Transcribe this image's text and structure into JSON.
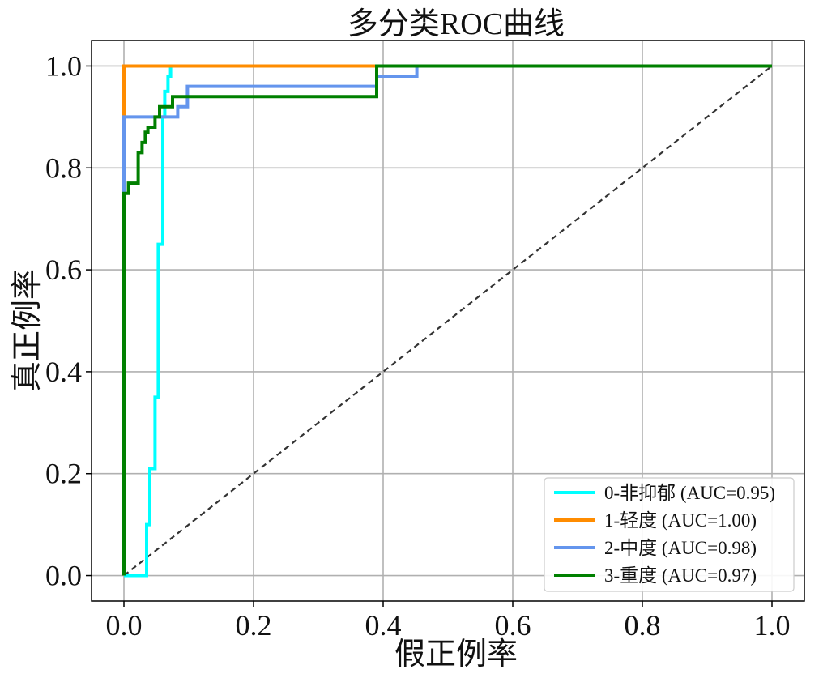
{
  "chart_data": {
    "type": "line",
    "title": "多分类ROC曲线",
    "xlabel": "假正例率",
    "ylabel": "真正例率",
    "xlim": [
      -0.05,
      1.05
    ],
    "ylim": [
      -0.05,
      1.05
    ],
    "xticks": [
      "0.0",
      "0.2",
      "0.4",
      "0.6",
      "0.8",
      "1.0"
    ],
    "yticks": [
      "0.0",
      "0.2",
      "0.4",
      "0.6",
      "0.8",
      "1.0"
    ],
    "xtick_values": [
      0,
      0.2,
      0.4,
      0.6,
      0.8,
      1.0
    ],
    "ytick_values": [
      0,
      0.2,
      0.4,
      0.6,
      0.8,
      1.0
    ],
    "grid": true,
    "legend_position": "bottom-right",
    "series": [
      {
        "name": "0-非抑郁",
        "auc_label": "(AUC=0.95)",
        "color": "#00ffff",
        "points": [
          [
            0,
            0
          ],
          [
            0.035,
            0
          ],
          [
            0.035,
            0.1
          ],
          [
            0.04,
            0.1
          ],
          [
            0.04,
            0.21
          ],
          [
            0.048,
            0.21
          ],
          [
            0.048,
            0.35
          ],
          [
            0.053,
            0.35
          ],
          [
            0.053,
            0.65
          ],
          [
            0.06,
            0.65
          ],
          [
            0.06,
            0.9
          ],
          [
            0.063,
            0.9
          ],
          [
            0.063,
            0.95
          ],
          [
            0.068,
            0.95
          ],
          [
            0.068,
            0.98
          ],
          [
            0.072,
            0.98
          ],
          [
            0.072,
            1.0
          ],
          [
            1.0,
            1.0
          ]
        ]
      },
      {
        "name": "1-轻度",
        "auc_label": "(AUC=1.00)",
        "color": "#ff8c00",
        "points": [
          [
            0,
            0
          ],
          [
            0,
            0.9
          ],
          [
            0,
            1.0
          ],
          [
            1.0,
            1.0
          ]
        ]
      },
      {
        "name": "2-中度",
        "auc_label": "(AUC=0.98)",
        "color": "#6495ed",
        "points": [
          [
            0,
            0
          ],
          [
            0,
            0.75
          ],
          [
            0,
            0.9
          ],
          [
            0.083,
            0.9
          ],
          [
            0.083,
            0.92
          ],
          [
            0.098,
            0.92
          ],
          [
            0.098,
            0.96
          ],
          [
            0.39,
            0.96
          ],
          [
            0.39,
            0.98
          ],
          [
            0.452,
            0.98
          ],
          [
            0.452,
            1.0
          ],
          [
            1.0,
            1.0
          ]
        ]
      },
      {
        "name": "3-重度",
        "auc_label": "(AUC=0.97)",
        "color": "#008000",
        "points": [
          [
            0,
            0
          ],
          [
            0,
            0.75
          ],
          [
            0.007,
            0.75
          ],
          [
            0.007,
            0.77
          ],
          [
            0.022,
            0.77
          ],
          [
            0.022,
            0.83
          ],
          [
            0.028,
            0.83
          ],
          [
            0.028,
            0.85
          ],
          [
            0.033,
            0.85
          ],
          [
            0.033,
            0.87
          ],
          [
            0.037,
            0.87
          ],
          [
            0.037,
            0.88
          ],
          [
            0.048,
            0.88
          ],
          [
            0.048,
            0.9
          ],
          [
            0.055,
            0.9
          ],
          [
            0.055,
            0.92
          ],
          [
            0.075,
            0.92
          ],
          [
            0.075,
            0.94
          ],
          [
            0.39,
            0.94
          ],
          [
            0.39,
            1.0
          ],
          [
            1.0,
            1.0
          ]
        ]
      }
    ],
    "reference_line": {
      "points": [
        [
          0,
          0
        ],
        [
          1,
          1
        ]
      ],
      "color": "#333333",
      "style": "dashed"
    }
  }
}
